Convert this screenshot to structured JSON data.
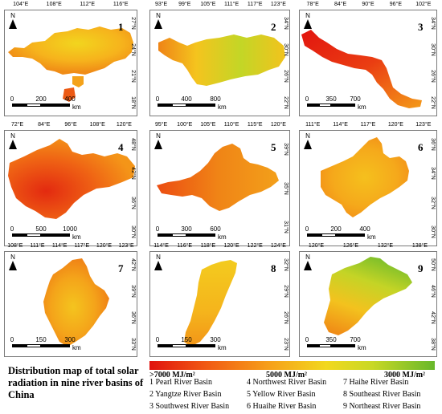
{
  "panels": [
    {
      "number": "1",
      "lon_ticks": [
        "104°E",
        "108°E",
        "112°E",
        "116°E"
      ],
      "lat_ticks": [
        "27°N",
        "24°N",
        "21°N",
        "18°N"
      ],
      "scale": [
        "0",
        "200",
        "400"
      ],
      "unit": "km",
      "north": "N"
    },
    {
      "number": "2",
      "lon_ticks": [
        "93°E",
        "99°E",
        "105°E",
        "111°E",
        "117°E",
        "123°E"
      ],
      "lat_ticks": [
        "34°N",
        "30°N",
        "26°N",
        "22°N"
      ],
      "scale": [
        "0",
        "400",
        "800"
      ],
      "unit": "km",
      "north": "N"
    },
    {
      "number": "3",
      "lon_ticks": [
        "78°E",
        "84°E",
        "90°E",
        "96°E",
        "102°E"
      ],
      "lat_ticks": [
        "34°N",
        "30°N",
        "26°N",
        "22°N"
      ],
      "scale": [
        "0",
        "350",
        "700"
      ],
      "unit": "km",
      "north": "N"
    },
    {
      "number": "4",
      "lon_ticks": [
        "72°E",
        "84°E",
        "96°E",
        "108°E",
        "120°E"
      ],
      "lat_ticks": [
        "48°N",
        "42°N",
        "36°N",
        "30°N"
      ],
      "scale": [
        "0",
        "500",
        "1000"
      ],
      "unit": "km",
      "north": "N"
    },
    {
      "number": "5",
      "lon_ticks": [
        "95°E",
        "100°E",
        "105°E",
        "110°E",
        "115°E",
        "120°E"
      ],
      "lat_ticks": [
        "39°N",
        "35°N",
        "31°N"
      ],
      "scale": [
        "0",
        "300",
        "600"
      ],
      "unit": "km",
      "north": "N"
    },
    {
      "number": "6",
      "lon_ticks": [
        "111°E",
        "114°E",
        "117°E",
        "120°E",
        "123°E"
      ],
      "lat_ticks": [
        "36°N",
        "34°N",
        "32°N",
        "30°N"
      ],
      "scale": [
        "0",
        "200",
        "400"
      ],
      "unit": "km",
      "north": "N"
    },
    {
      "number": "7",
      "lon_ticks": [
        "108°E",
        "111°E",
        "114°E",
        "117°E",
        "120°E",
        "123°E"
      ],
      "lat_ticks": [
        "42°N",
        "39°N",
        "36°N",
        "33°N"
      ],
      "scale": [
        "0",
        "150",
        "300"
      ],
      "unit": "km",
      "north": "N"
    },
    {
      "number": "8",
      "lon_ticks": [
        "114°E",
        "116°E",
        "118°E",
        "120°E",
        "122°E",
        "124°E"
      ],
      "lat_ticks": [
        "32°N",
        "29°N",
        "26°N",
        "23°N"
      ],
      "scale": [
        "0",
        "150",
        "300"
      ],
      "unit": "km",
      "north": "N"
    },
    {
      "number": "9",
      "lon_ticks": [
        "120°E",
        "126°E",
        "132°E",
        "138°E"
      ],
      "lat_ticks": [
        "50°N",
        "46°N",
        "42°N",
        "38°N"
      ],
      "scale": [
        "0",
        "350",
        "700"
      ],
      "unit": "km",
      "north": "N"
    }
  ],
  "title": "Distribution map of total solar radiation in nine river basins of China",
  "legend": {
    "high_label": ">7000 MJ/m²",
    "mid_label": "5000 MJ/m²",
    "low_label": "3000 MJ/m²",
    "colors": [
      "#e0130f",
      "#f6a01a",
      "#f2d81e",
      "#68b82a"
    ],
    "basins": [
      "1 Pearl River Basin",
      "2 Yangtze River Basin",
      "3 Southwest River Basin",
      "4 Northwest River Basin",
      "5 Yellow River Basin",
      "6 Huaihe River Basin",
      "7 Haihe River Basin",
      "8 Southeast River Basin",
      "9 Northeast River Basin"
    ]
  }
}
